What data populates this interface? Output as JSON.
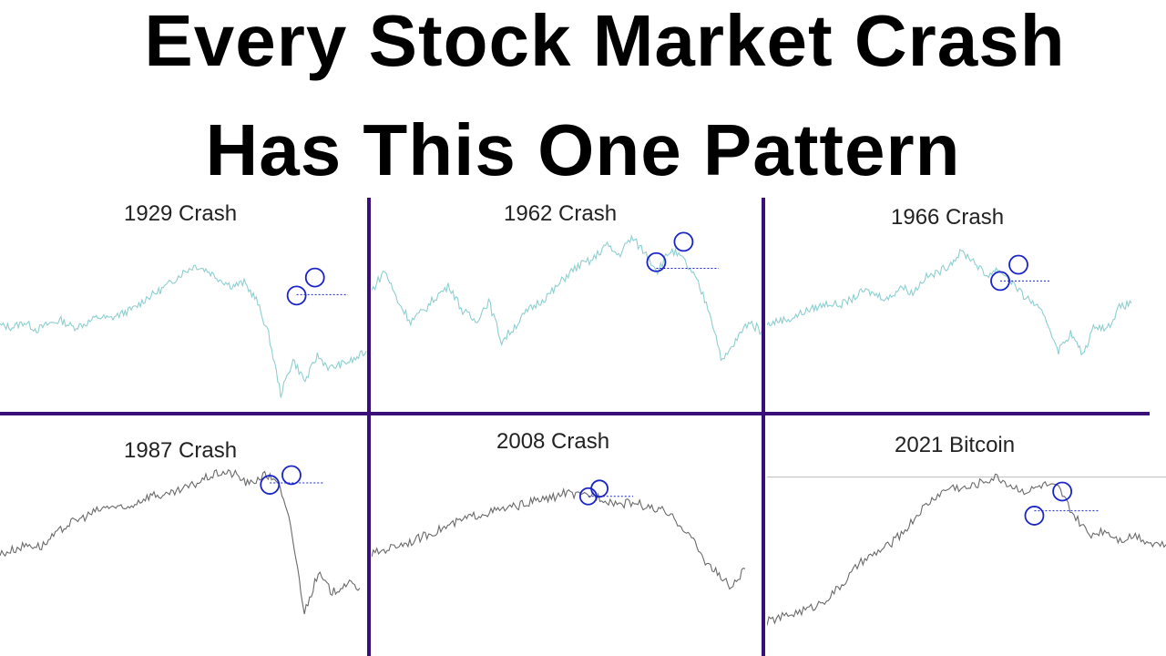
{
  "headline": {
    "line1": "Every Stock Market Crash",
    "line2": "Has This One Pattern"
  },
  "colors": {
    "teal": "#8ecfd0",
    "gray": "#6a6a6a",
    "marker": "#1a24c8",
    "divider": "#3b0f7a"
  },
  "chart_data": [
    {
      "type": "line",
      "title": "1929 Crash",
      "color": "teal",
      "values": [
        0.2,
        0.18,
        0.24,
        0.15,
        0.22,
        0.26,
        0.18,
        0.22,
        0.3,
        0.28,
        0.34,
        0.4,
        0.52,
        0.6,
        0.7,
        0.82,
        0.9,
        0.84,
        0.74,
        0.66,
        0.7,
        0.5,
        0.1,
        -0.6,
        -0.2,
        -0.45,
        -0.15,
        -0.3,
        -0.25,
        -0.2,
        -0.1
      ],
      "annotations": {
        "neckline": 0.56,
        "left_shoulder": 0.55,
        "head": 0.76
      }
    },
    {
      "type": "line",
      "title": "1962 Crash",
      "color": "teal",
      "values": [
        0.4,
        0.6,
        0.3,
        0.1,
        0.2,
        0.35,
        0.45,
        0.2,
        0.1,
        0.3,
        -0.1,
        0.05,
        0.2,
        0.3,
        0.4,
        0.55,
        0.65,
        0.7,
        0.85,
        0.75,
        0.92,
        0.78,
        0.6,
        0.8,
        0.7,
        0.5,
        0.2,
        -0.3,
        -0.1,
        0.1,
        0.0
      ],
      "annotations": {
        "neckline": 0.62,
        "left_shoulder": 0.68,
        "head": 0.88
      }
    },
    {
      "type": "line",
      "title": "1966 Crash",
      "color": "teal",
      "values": [
        0.05,
        0.1,
        0.12,
        0.2,
        0.25,
        0.3,
        0.28,
        0.35,
        0.45,
        0.4,
        0.35,
        0.5,
        0.42,
        0.6,
        0.65,
        0.75,
        0.9,
        0.8,
        0.62,
        0.7,
        0.58,
        0.4,
        0.3,
        0.1,
        -0.25,
        -0.05,
        -0.3,
        0.05,
        0.0,
        0.25,
        0.3
      ],
      "annotations": {
        "neckline": 0.56,
        "left_shoulder": 0.56,
        "head": 0.75
      }
    },
    {
      "type": "line",
      "title": "1987 Crash",
      "color": "gray",
      "values": [
        0.1,
        0.15,
        0.2,
        0.18,
        0.3,
        0.42,
        0.48,
        0.55,
        0.6,
        0.56,
        0.65,
        0.72,
        0.7,
        0.76,
        0.82,
        0.9,
        0.95,
        0.93,
        0.82,
        0.92,
        0.88,
        0.4,
        -0.5,
        -0.1,
        -0.3,
        -0.2,
        -0.25
      ],
      "annotations": {
        "neckline": 0.84,
        "left_shoulder": 0.82,
        "head": 0.92
      }
    },
    {
      "type": "line",
      "title": "2008 Crash",
      "color": "gray",
      "values": [
        0.1,
        0.15,
        0.2,
        0.24,
        0.3,
        0.36,
        0.42,
        0.48,
        0.52,
        0.55,
        0.58,
        0.62,
        0.66,
        0.68,
        0.74,
        0.7,
        0.72,
        0.66,
        0.62,
        0.64,
        0.58,
        0.55,
        0.45,
        0.3,
        0.05,
        -0.1,
        -0.25,
        -0.05
      ],
      "annotations": {
        "neckline": 0.7,
        "left_shoulder": 0.7,
        "head": 0.78
      }
    },
    {
      "type": "line",
      "title": "2021 Bitcoin",
      "color": "gray",
      "values": [
        -0.6,
        -0.55,
        -0.5,
        -0.45,
        -0.35,
        -0.2,
        0.0,
        0.1,
        0.2,
        0.35,
        0.55,
        0.7,
        0.8,
        0.78,
        0.85,
        0.9,
        0.8,
        0.75,
        0.82,
        0.78,
        0.5,
        0.3,
        0.35,
        0.25,
        0.3,
        0.22,
        0.2
      ],
      "annotations": {
        "neckline": 0.55,
        "left_shoulder": 0.5,
        "head": 0.75,
        "reference_line": 0.9
      }
    }
  ]
}
